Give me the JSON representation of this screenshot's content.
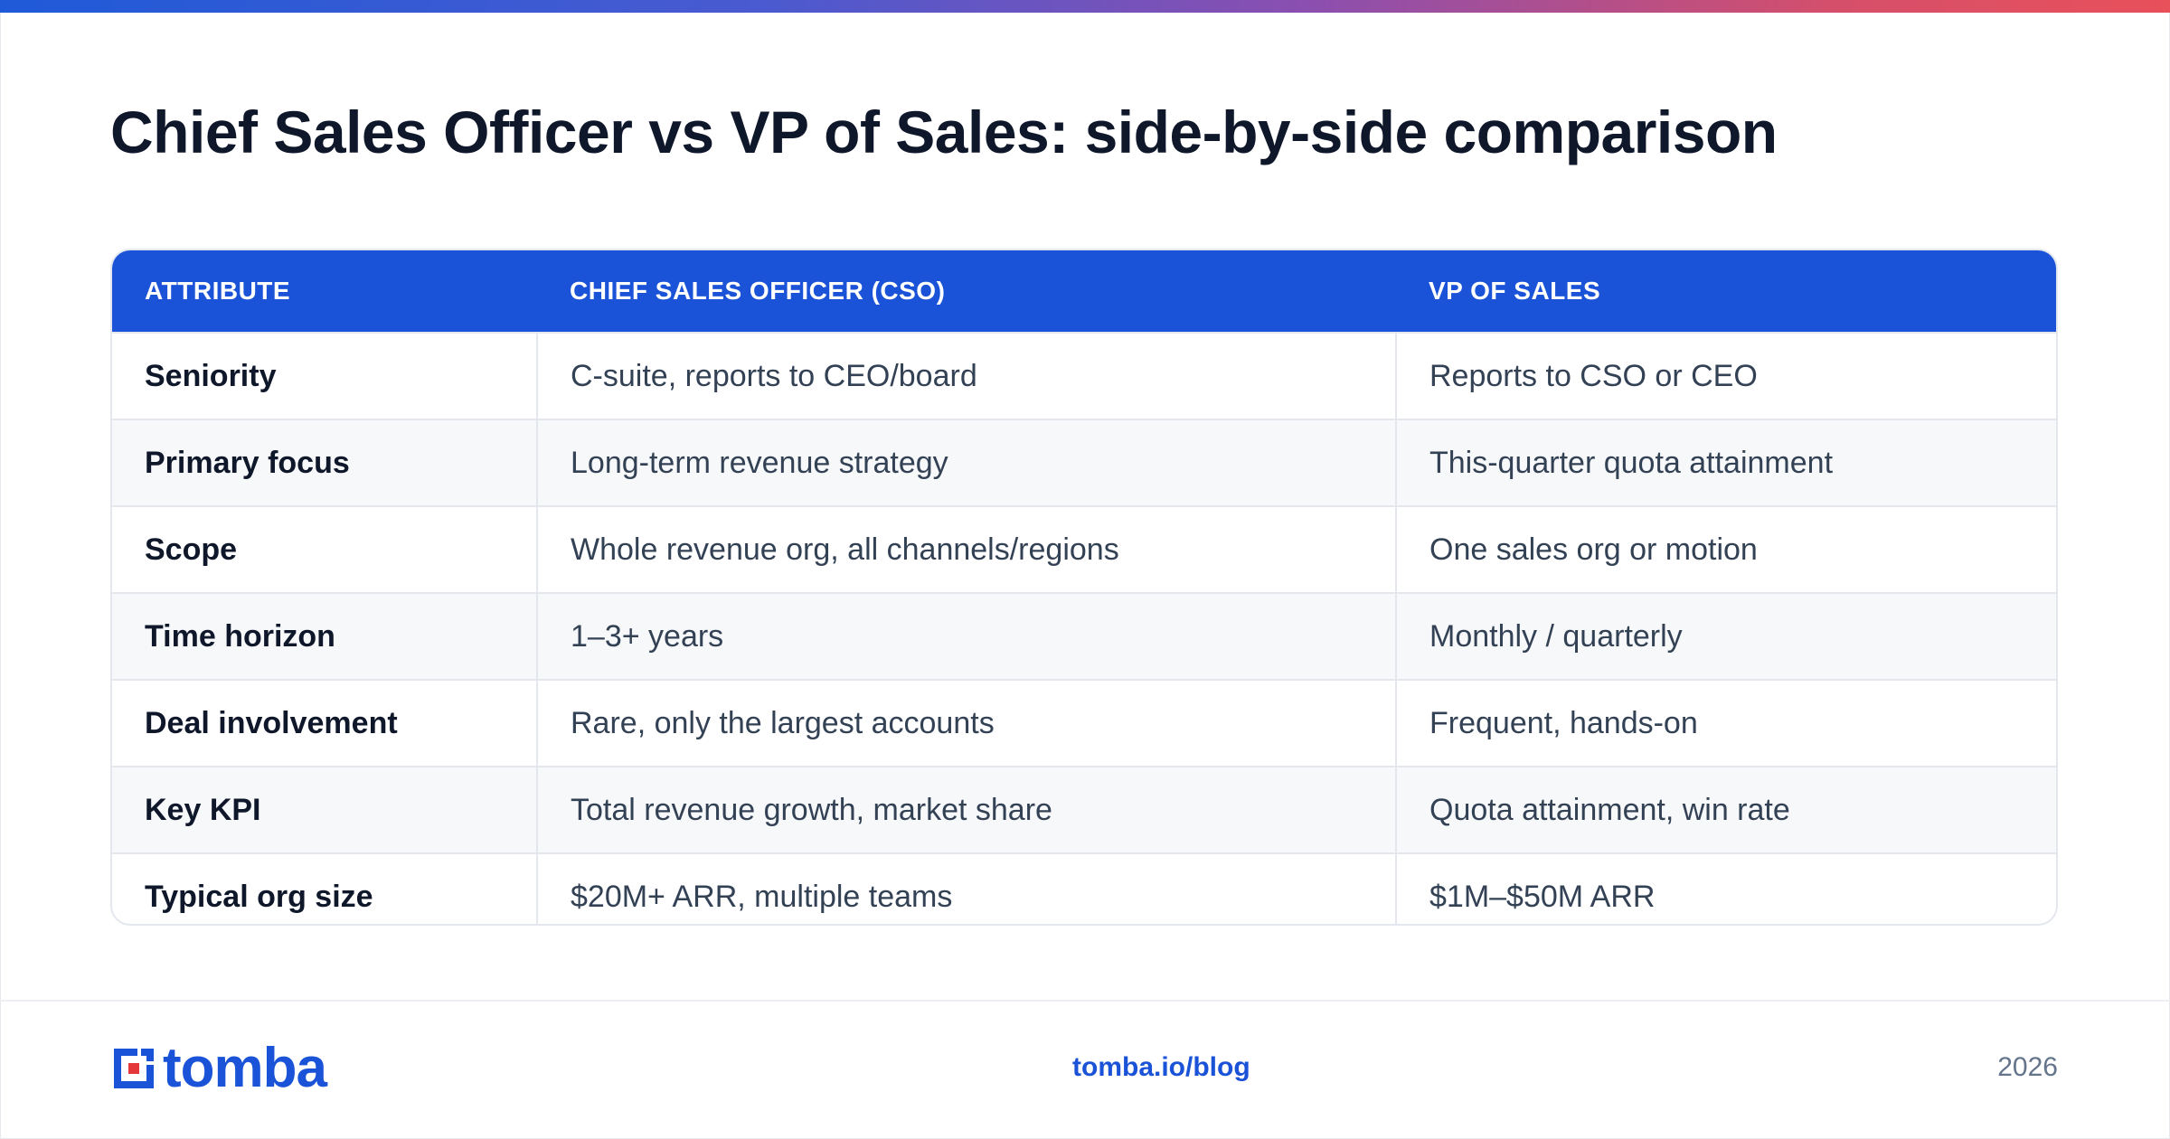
{
  "title": "Chief Sales Officer vs VP of Sales: side-by-side comparison",
  "table": {
    "headers": [
      "ATTRIBUTE",
      "CHIEF SALES OFFICER (CSO)",
      "VP OF SALES"
    ],
    "rows": [
      [
        "Seniority",
        "C-suite, reports to CEO/board",
        "Reports to CSO or CEO"
      ],
      [
        "Primary focus",
        "Long-term revenue strategy",
        "This-quarter quota attainment"
      ],
      [
        "Scope",
        "Whole revenue org, all channels/regions",
        "One sales org or motion"
      ],
      [
        "Time horizon",
        "1–3+ years",
        "Monthly / quarterly"
      ],
      [
        "Deal involvement",
        "Rare, only the largest accounts",
        "Frequent, hands-on"
      ],
      [
        "Key KPI",
        "Total revenue growth, market share",
        "Quota attainment, win rate"
      ],
      [
        "Typical org size",
        "$20M+ ARR, multiple teams",
        "$1M–$50M ARR"
      ]
    ]
  },
  "footer": {
    "logo_text": "tomba",
    "link": "tomba.io/blog",
    "year": "2026"
  },
  "colors": {
    "accent": "#1a53d8",
    "logo_red": "#e5383b",
    "title": "#0f172a",
    "body_text": "#334155"
  },
  "icons": [
    "tomba-logo-icon"
  ]
}
